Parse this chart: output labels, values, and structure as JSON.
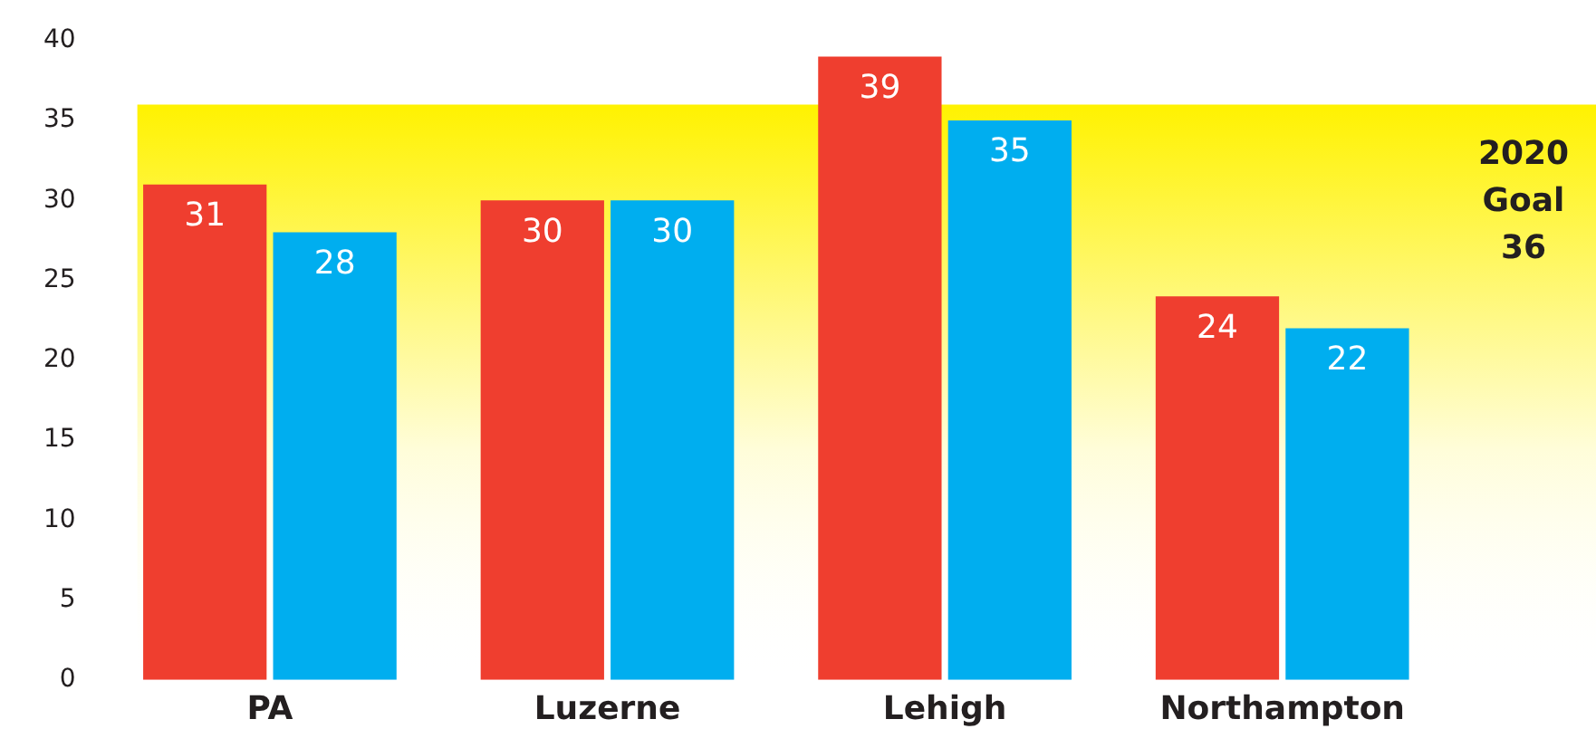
{
  "chart_data": {
    "type": "bar",
    "categories": [
      "PA",
      "Luzerne",
      "Lehigh",
      "Northampton"
    ],
    "series": [
      {
        "color": "#ef3e2f",
        "values": [
          31,
          30,
          39,
          24
        ]
      },
      {
        "color": "#00aeef",
        "values": [
          28,
          30,
          35,
          22
        ]
      }
    ],
    "ylim": [
      0,
      40
    ],
    "yticks": [
      0,
      5,
      10,
      15,
      20,
      25,
      30,
      35,
      40
    ],
    "grid": false,
    "legend": false,
    "data_labels": true,
    "bands": [
      {
        "axis": "y",
        "from": 0,
        "to": 36,
        "label": "2020 Goal 36",
        "color": "#fff200"
      }
    ]
  }
}
